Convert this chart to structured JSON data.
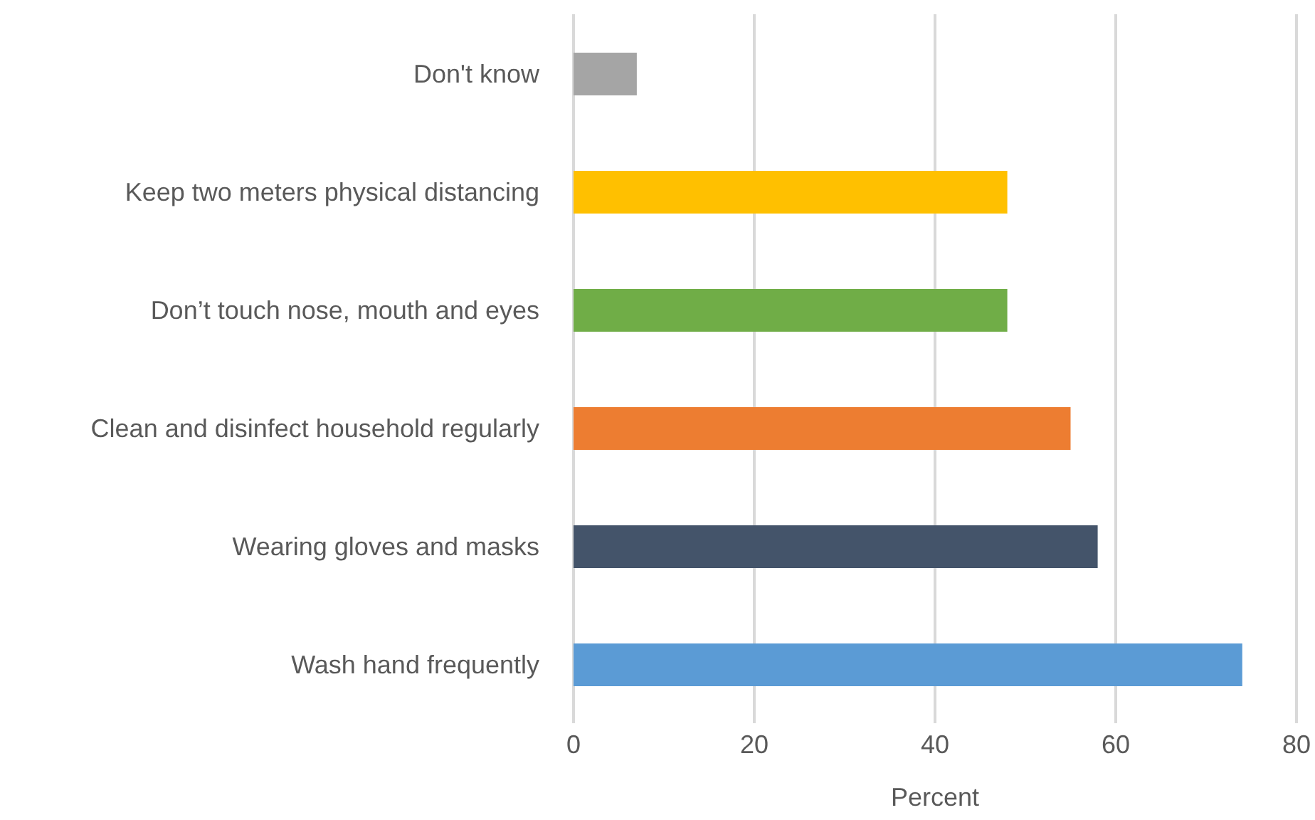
{
  "chart_data": {
    "type": "bar",
    "orientation": "horizontal",
    "xlabel": "Percent",
    "categories": [
      "Don't know",
      "Keep two meters physical distancing",
      "Don’t touch nose, mouth and eyes",
      "Clean and disinfect household regularly",
      "Wearing gloves and masks",
      "Wash hand frequently"
    ],
    "values": [
      7,
      48,
      48,
      55,
      58,
      74
    ],
    "colors": [
      "#a5a5a5",
      "#ffc000",
      "#70ad47",
      "#ed7d31",
      "#44546a",
      "#5b9bd5"
    ],
    "xlim": [
      0,
      80
    ],
    "xticks": [
      0,
      20,
      40,
      60,
      80
    ],
    "grid": "x"
  }
}
